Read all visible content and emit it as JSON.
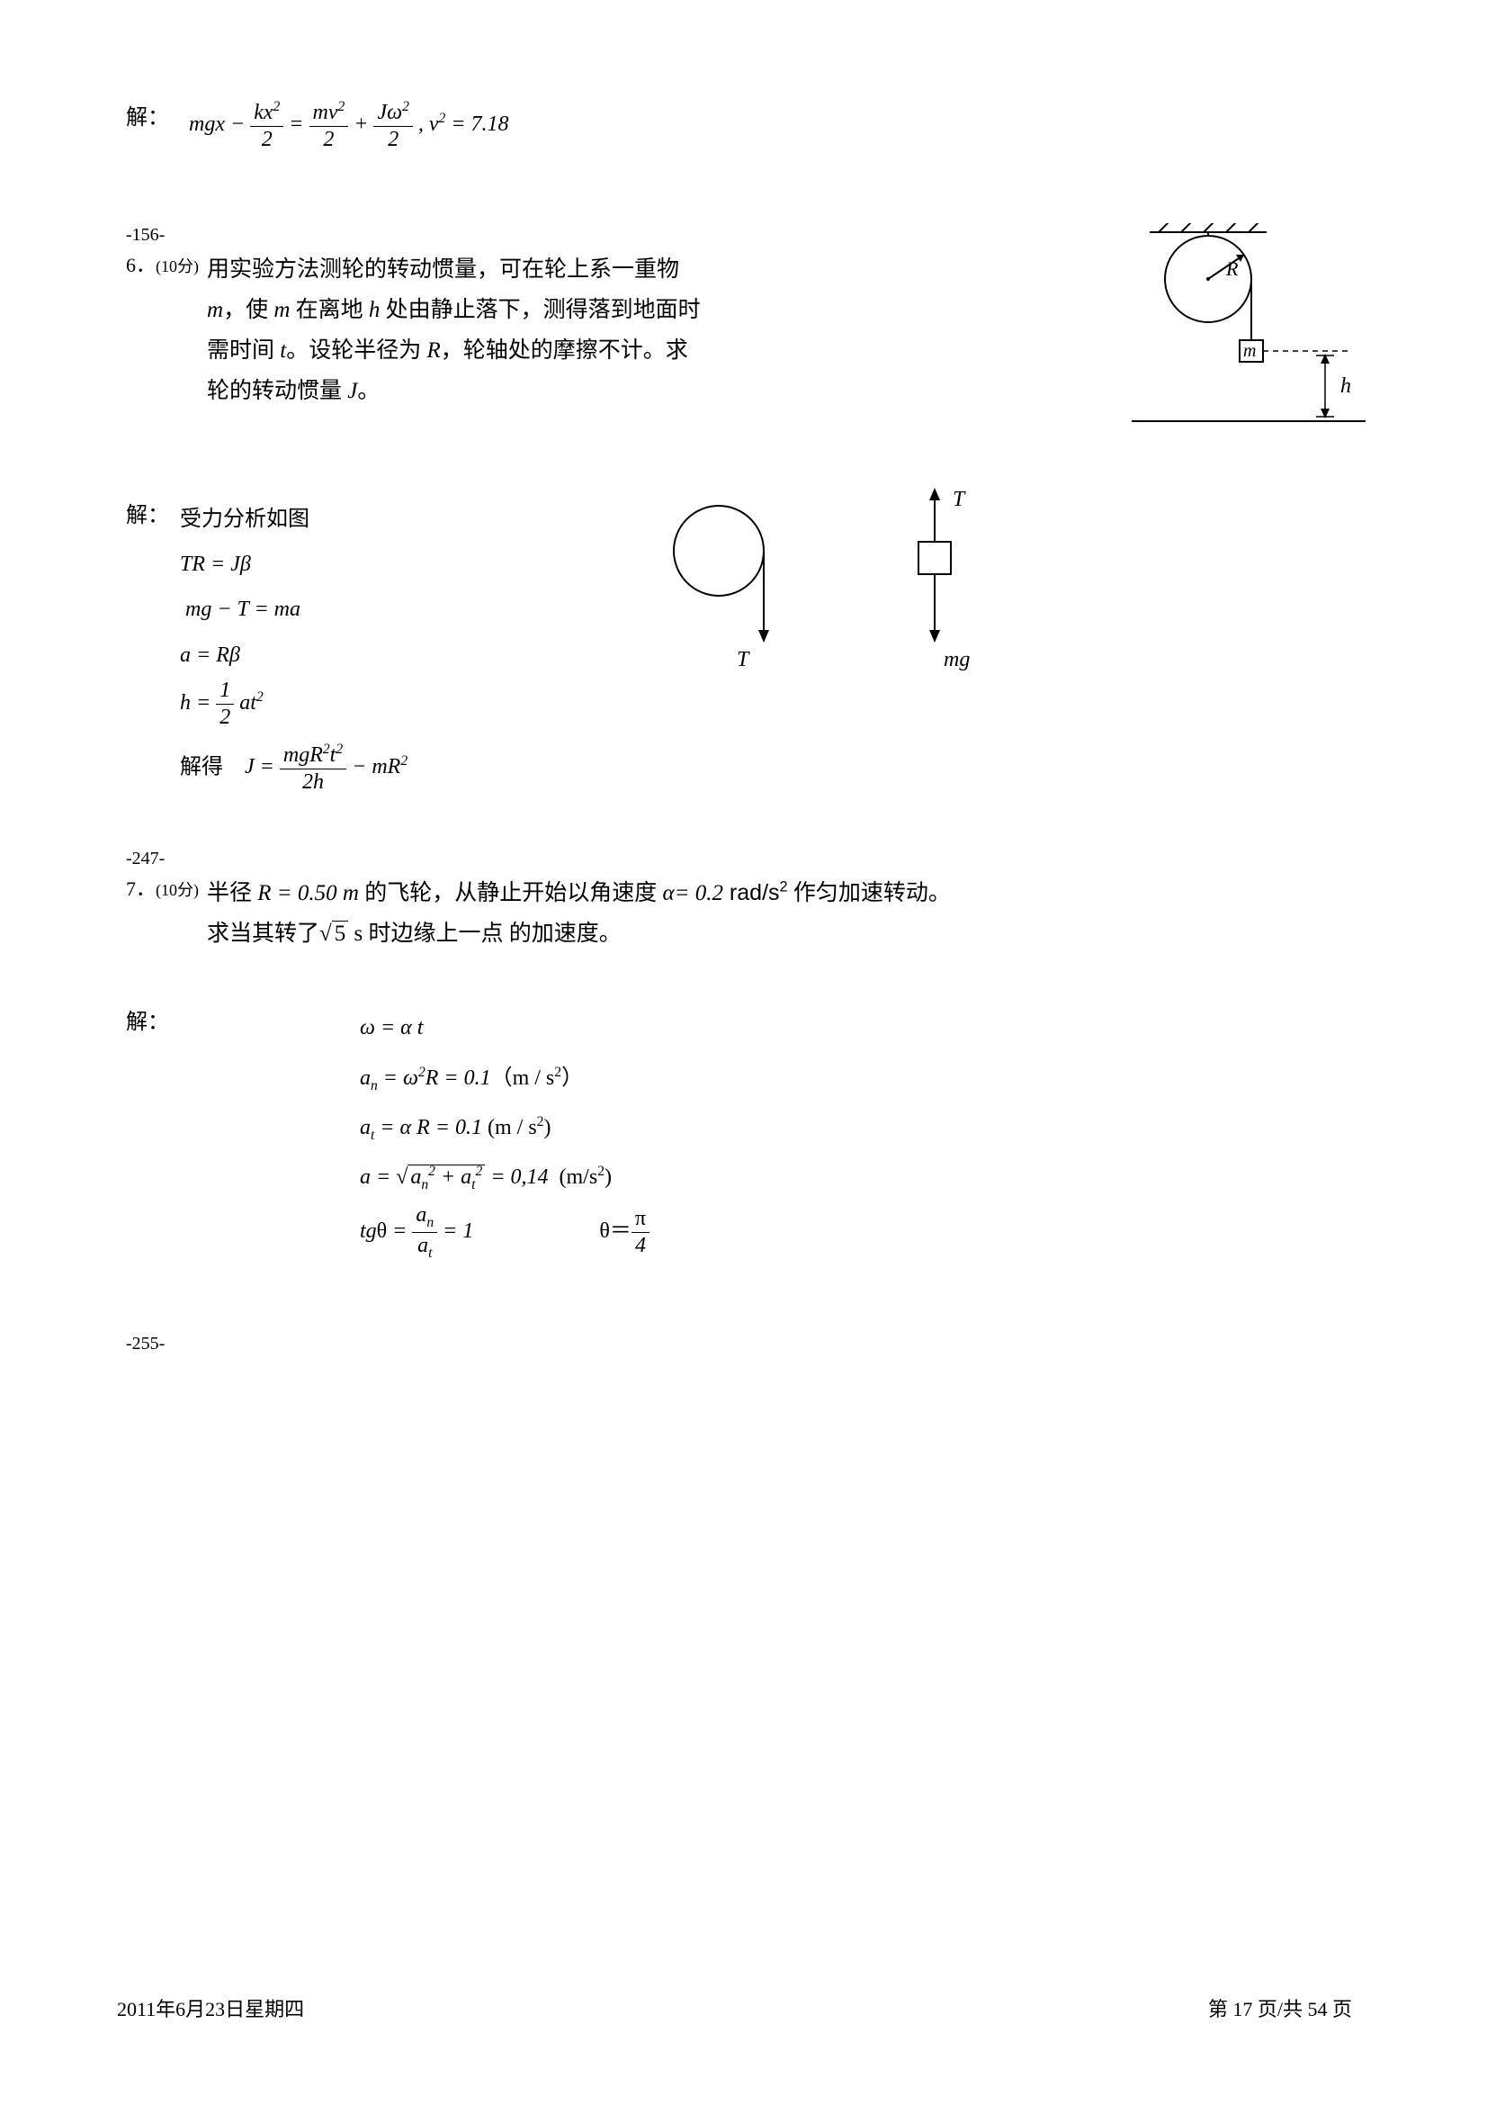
{
  "problem5_sol": {
    "label": "解：",
    "equation_html": "<span class='eq'>mgx − <span class='frac'><span class='num'>kx<sup>2</sup></span><span class='den'>2</span></span> = <span class='frac'><span class='num'>mv<sup>2</sup></span><span class='den'>2</span></span> + <span class='frac'><span class='num'>Jω<sup>2</sup></span><span class='den'>2</span></span> , v<sup>2</sup> = 7.18</span>"
  },
  "code1": "-156-",
  "problem6": {
    "num": "6．",
    "points": "(10分)",
    "text_p1": "用实验方法测轮的转动惯量，可在轮上系一重物",
    "text_p2_a": "，使 ",
    "text_p2_b": " 在离地 ",
    "text_p2_c": " 处由静止落下，测得落到地面时",
    "text_p3_a": "需时间 ",
    "text_p3_b": "。设轮半径为 ",
    "text_p3_c": "，轮轴处的摩擦不计。求",
    "text_p4_a": "轮的转动惯量 ",
    "text_p4_b": "。",
    "m": "m",
    "h": "h",
    "t": "t",
    "R": "R",
    "J": "J"
  },
  "diagram6": {
    "R": "R",
    "m": "m",
    "h": "h"
  },
  "problem6_sol": {
    "label": "解：",
    "line1": "受力分析如图",
    "line2_html": "<span class='eq'>TR = Jβ</span>",
    "line3_html": "<span class='eq'>&nbsp;mg − T = ma</span>",
    "line4_html": "<span class='eq'>a = Rβ</span>",
    "line5_html": "<span class='eq'>h = <span class='frac'><span class='num'>1</span><span class='den'>2</span></span> at<sup>2</sup></span>",
    "line6_label": "解得",
    "line6_html": "<span class='eq'>J = <span class='frac'><span class='num'>mgR<sup>2</sup>t<sup>2</sup></span><span class='den'>2h</span></span> − mR<sup>2</sup></span>"
  },
  "diagram6_sol": {
    "T1": "T",
    "T2": "T",
    "mg": "mg"
  },
  "code2": "-247-",
  "problem7": {
    "num": "7．",
    "points": "(10分)",
    "text1_a": "半径 ",
    "R_eq": "R = 0.50 m",
    "text1_b": " 的飞轮，从静止开始以角速度 ",
    "alpha_eq": "α= 0.2",
    "unit": " rad/s",
    "text1_c": " 作匀加速转动。",
    "text2_a": "求当其转了",
    "sqrt5": "5",
    "text2_b": "s 时边缘上一点  的加速度。"
  },
  "problem7_sol": {
    "label": "解：",
    "l1_html": "<span class='eq'>ω = α&nbsp;<span>t</span></span>",
    "l2_html": "<span class='eq'>a<sub>n</sub> = ω<sup>2</sup>R = 0.1<span class='up'>（m / s<sup>2</sup>）</span></span>",
    "l3_html": "<span class='eq'>a<sub>t</sub> = α&nbsp;R = 0.1 <span class='up'>(m / s<sup>2</sup>)</span></span>",
    "l4_html": "<span class='eq'>a = <span class='sqrt'><span class='sqrt-body'>a<sub>n</sub><sup>2</sup> + a<sub>t</sub><sup>2</sup></span></span> = 0,14 &nbsp;<span class='up'>(m/s<sup>2</sup>)</span></span>",
    "l5_html": "<span class='eq'>tg<span class='up'>θ</span> = <span class='frac'><span class='num'>a<sub>n</sub></span><span class='den'>a<sub>t</sub></span></span> = 1</span>",
    "l5b_html": "<span class='eq'><span class='up'>θ＝</span><span class='frac'><span class='num up'>π</span><span class='den'>4</span></span></span>"
  },
  "code3": "-255-",
  "footer": {
    "date": "2011年6月23日星期四",
    "page_a": "第 ",
    "page_cur": "17",
    "page_b": " 页/共 ",
    "page_tot": "54",
    "page_c": " 页"
  }
}
